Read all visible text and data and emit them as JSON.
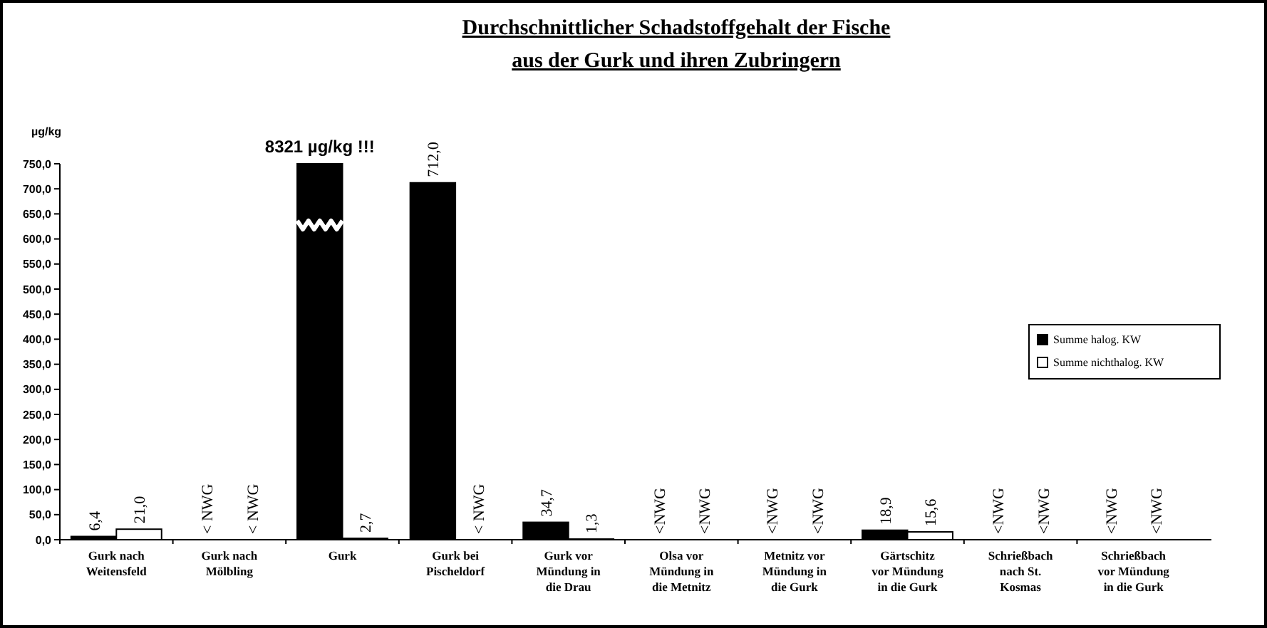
{
  "chart_data": {
    "type": "bar",
    "title": "Durchschnittlicher Schadstoffgehalt der Fische",
    "subtitle": "aus der Gurk und ihren Zubringern",
    "ylabel": "µg/kg",
    "categories": [
      "Gurk nach Weitensfeld",
      "Gurk nach Mölbling",
      "Gurk",
      "Gurk bei Pischeldorf",
      "Gurk vor Mündung in die Drau",
      "Olsa vor Mündung in die Metnitz",
      "Metnitz vor Mündung in die Gurk",
      "Gärtschitz vor Mündung in die Gurk",
      "Schrießbach nach St. Kosmas",
      "Schrießbach vor Mündung in die Gurk"
    ],
    "series": [
      {
        "name": "Summe halog. KW",
        "color": "#000000",
        "values": [
          6.4,
          null,
          750,
          712.0,
          34.7,
          null,
          null,
          18.9,
          null,
          null
        ],
        "value_labels": [
          "6,4",
          "< NWG",
          null,
          "712,0",
          "34,7",
          "<NWG",
          "<NWG",
          "18,9",
          "<NWG",
          "<NWG"
        ]
      },
      {
        "name": "Summe nichthalog. KW",
        "color": "#ffffff",
        "values": [
          21.0,
          null,
          2.7,
          null,
          1.3,
          null,
          null,
          15.6,
          null,
          null
        ],
        "value_labels": [
          "21,0",
          "< NWG",
          "2,7",
          "< NWG",
          "1,3",
          "<NWG",
          "<NWG",
          "15,6",
          "<NWG",
          "<NWG"
        ]
      }
    ],
    "annotations": [
      {
        "text": "8321 µg/kg !!!",
        "x": "Gurk",
        "y": 750
      }
    ],
    "ylim": [
      0,
      750
    ],
    "yticks": [
      {
        "value": 0,
        "label": "0,0"
      },
      {
        "value": 50,
        "label": "50,0"
      },
      {
        "value": 100,
        "label": "100,0"
      },
      {
        "value": 150,
        "label": "150,0"
      },
      {
        "value": 200,
        "label": "200,0"
      },
      {
        "value": 250,
        "label": "250,0"
      },
      {
        "value": 300,
        "label": "300,0"
      },
      {
        "value": 350,
        "label": "350,0"
      },
      {
        "value": 400,
        "label": "400,0"
      },
      {
        "value": 450,
        "label": "450,0"
      },
      {
        "value": 500,
        "label": "500,0"
      },
      {
        "value": 550,
        "label": "550,0"
      },
      {
        "value": 600,
        "label": "600,0"
      },
      {
        "value": 650,
        "label": "650,0"
      },
      {
        "value": 700,
        "label": "700,0"
      },
      {
        "value": 750,
        "label": "750,0"
      }
    ],
    "grid": false,
    "legend": "right"
  }
}
